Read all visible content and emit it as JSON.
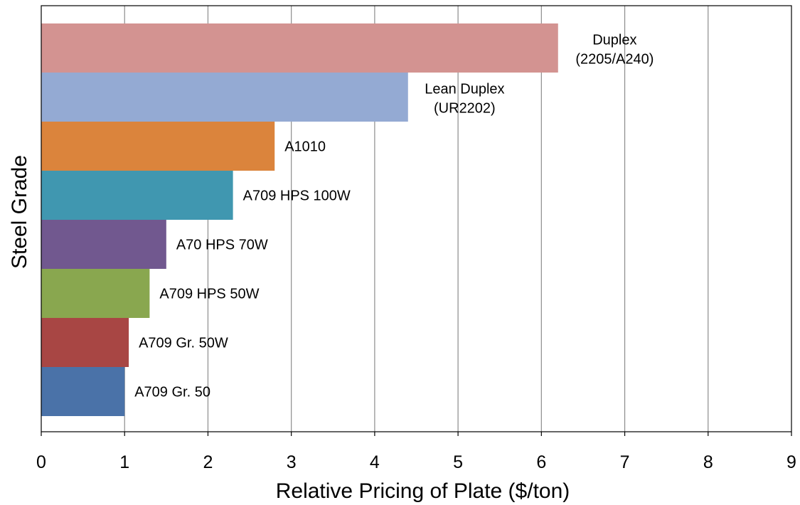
{
  "chart_data": {
    "type": "bar",
    "orientation": "horizontal",
    "title": "",
    "xlabel": "Relative Pricing of Plate ($/ton)",
    "ylabel": "Steel Grade",
    "xlim": [
      0,
      9
    ],
    "x_ticks": [
      "0",
      "1",
      "2",
      "3",
      "4",
      "5",
      "6",
      "7",
      "8",
      "9"
    ],
    "grid": "vertical",
    "legend": "none",
    "bars": [
      {
        "label": [
          "A709 Gr. 50"
        ],
        "value": 1.0,
        "color": "#4a72a8"
      },
      {
        "label": [
          "A709 Gr. 50W"
        ],
        "value": 1.05,
        "color": "#a84644"
      },
      {
        "label": [
          "A709 HPS 50W"
        ],
        "value": 1.3,
        "color": "#89a74f"
      },
      {
        "label": [
          "A70 HPS 70W"
        ],
        "value": 1.5,
        "color": "#71588f"
      },
      {
        "label": [
          "A709 HPS 100W"
        ],
        "value": 2.3,
        "color": "#4097b0"
      },
      {
        "label": [
          "A1010"
        ],
        "value": 2.8,
        "color": "#db843c"
      },
      {
        "label": [
          "Lean Duplex",
          "(UR2202)"
        ],
        "value": 4.4,
        "color": "#94aad3"
      },
      {
        "label": [
          "Duplex",
          "(2205/A240)"
        ],
        "value": 6.2,
        "color": "#d39391"
      }
    ]
  }
}
